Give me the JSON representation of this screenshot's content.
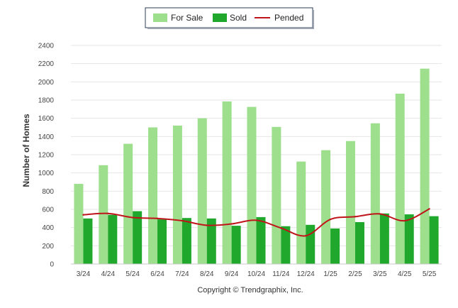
{
  "chart_data": {
    "type": "bar",
    "categories": [
      "3/24",
      "4/24",
      "5/24",
      "6/24",
      "7/24",
      "8/24",
      "9/24",
      "10/24",
      "11/24",
      "12/24",
      "1/25",
      "2/25",
      "3/25",
      "4/25",
      "5/25"
    ],
    "series": [
      {
        "name": "For Sale",
        "kind": "bar",
        "color": "#9ddf8c",
        "values": [
          880,
          1085,
          1320,
          1500,
          1520,
          1600,
          1785,
          1725,
          1505,
          1125,
          1250,
          1350,
          1545,
          1870,
          2145
        ]
      },
      {
        "name": "Sold",
        "kind": "bar",
        "color": "#1fa82c",
        "values": [
          500,
          540,
          580,
          490,
          505,
          500,
          420,
          515,
          415,
          430,
          390,
          460,
          555,
          545,
          525
        ]
      },
      {
        "name": "Pended",
        "kind": "line",
        "color": "#c0141b",
        "values": [
          540,
          555,
          510,
          500,
          475,
          425,
          440,
          480,
          395,
          310,
          490,
          520,
          550,
          475,
          605
        ]
      }
    ],
    "ylabel": "Number of Homes",
    "xlabel": "",
    "ylim": [
      0,
      2400
    ],
    "yticks": [
      0,
      200,
      400,
      600,
      800,
      1000,
      1200,
      1400,
      1600,
      1800,
      2000,
      2200,
      2400
    ],
    "grid": true,
    "legend_position": "top-center"
  },
  "legend": {
    "for_sale": "For Sale",
    "sold": "Sold",
    "pended": "Pended"
  },
  "footer": {
    "copyright": "Copyright © Trendgraphix, Inc."
  }
}
